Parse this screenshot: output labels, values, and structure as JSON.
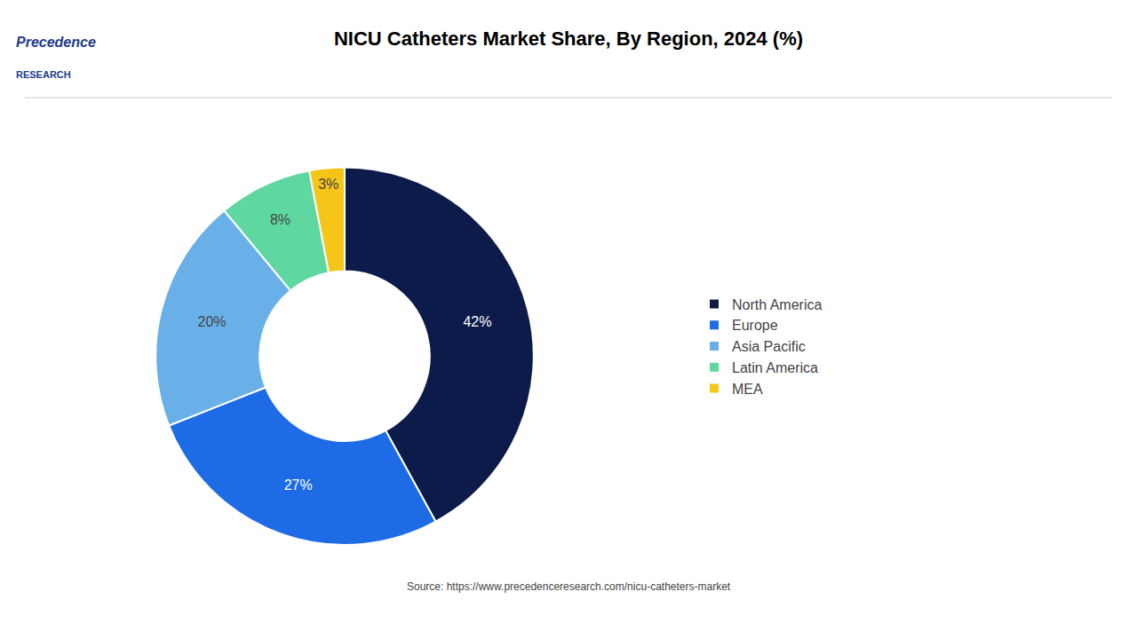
{
  "chart_data": {
    "type": "pie",
    "title": "NICU Catheters Market Share, By Region, 2024 (%)",
    "categories": [
      "North America",
      "Europe",
      "Asia Pacific",
      "Latin America",
      "MEA"
    ],
    "values": [
      42,
      27,
      20,
      8,
      3
    ],
    "value_labels": [
      "42%",
      "27%",
      "20%",
      "8%",
      "3%"
    ],
    "data_labels": true,
    "colors": [
      "#0d1b4b",
      "#1e6be6",
      "#6ab0e8",
      "#5ed8a0",
      "#f5c518"
    ],
    "legend": "right",
    "annotations": [
      "Source: https://www.precedenceresearch.com/nicu-catheters-market",
      "Precedence",
      "RESEARCH"
    ]
  }
}
